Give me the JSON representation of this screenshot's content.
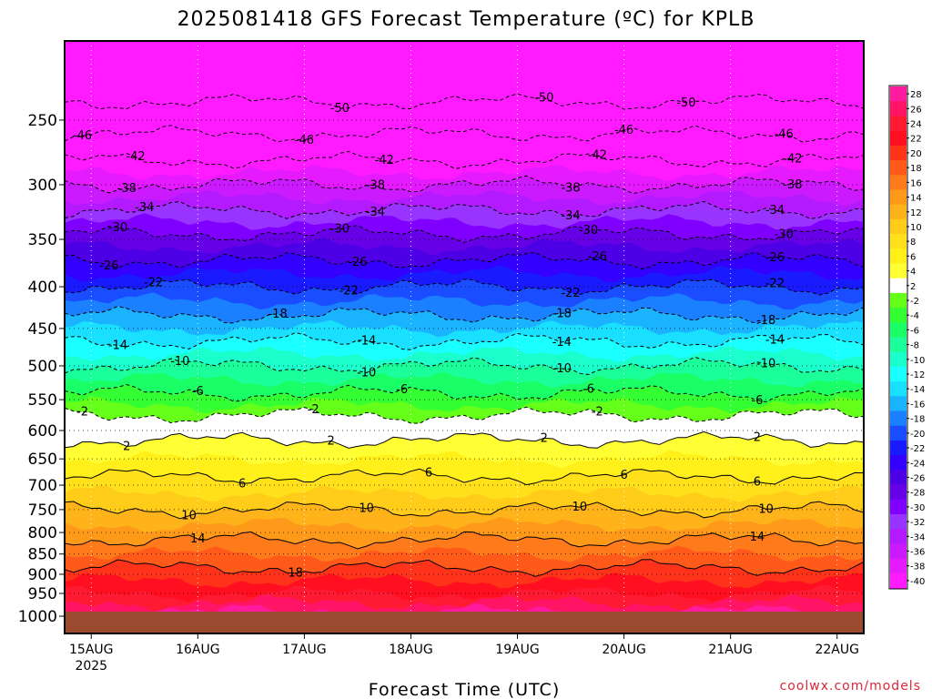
{
  "title": "2025081418 GFS Forecast Temperature (ºC) for KPLB",
  "credit": "coolwx.com/models",
  "chart_data": {
    "type": "heatmap",
    "title": "2025081418 GFS Forecast Temperature (ºC) for KPLB",
    "xlabel": "Forecast Time (UTC)",
    "ylabel": "",
    "x_ticks": [
      {
        "label": "15AUG",
        "sub": "2025",
        "hours": 6
      },
      {
        "label": "16AUG",
        "sub": "",
        "hours": 30
      },
      {
        "label": "17AUG",
        "sub": "",
        "hours": 54
      },
      {
        "label": "18AUG",
        "sub": "",
        "hours": 78
      },
      {
        "label": "19AUG",
        "sub": "",
        "hours": 102
      },
      {
        "label": "20AUG",
        "sub": "",
        "hours": 126
      },
      {
        "label": "21AUG",
        "sub": "",
        "hours": 150
      },
      {
        "label": "22AUG",
        "sub": "",
        "hours": 174
      }
    ],
    "xlim_hours": [
      0,
      180
    ],
    "y_ticks": [
      250,
      300,
      350,
      400,
      450,
      500,
      550,
      600,
      650,
      700,
      750,
      800,
      850,
      900,
      950,
      1000
    ],
    "ylim": [
      200,
      1000
    ],
    "y_scale": "log-pressure (inverted)",
    "colorbar": {
      "levels": [
        28,
        26,
        24,
        22,
        20,
        18,
        16,
        14,
        12,
        10,
        8,
        6,
        4,
        2,
        -2,
        -4,
        -6,
        -8,
        -10,
        -12,
        -14,
        -16,
        -18,
        -20,
        -22,
        -24,
        -26,
        -28,
        -30,
        -32,
        -34,
        -36,
        -38,
        -40
      ],
      "colors": [
        "#ff1a9e",
        "#ff1466",
        "#ff1a33",
        "#ff0f1f",
        "#ff331a",
        "#ff5a1a",
        "#ff7a1a",
        "#ff991a",
        "#ffb31a",
        "#ffcc1a",
        "#ffe01a",
        "#fff01a",
        "#ffff33",
        "#ffffff",
        "#66ff1a",
        "#33ff33",
        "#1aff66",
        "#1aff99",
        "#1affcc",
        "#1affff",
        "#1ae0ff",
        "#1ab3ff",
        "#1a80ff",
        "#1a4dff",
        "#1a1aff",
        "#3300ff",
        "#4d00e6",
        "#6600e6",
        "#8000ff",
        "#9933ff",
        "#b31aff",
        "#cc1aff",
        "#e61aff",
        "#ff1aff"
      ]
    },
    "profile": [
      {
        "p": 200,
        "t": -56
      },
      {
        "p": 250,
        "t": -48
      },
      {
        "p": 300,
        "t": -38
      },
      {
        "p": 350,
        "t": -29
      },
      {
        "p": 400,
        "t": -22
      },
      {
        "p": 450,
        "t": -16
      },
      {
        "p": 500,
        "t": -10
      },
      {
        "p": 550,
        "t": -5
      },
      {
        "p": 600,
        "t": 1
      },
      {
        "p": 650,
        "t": 4
      },
      {
        "p": 700,
        "t": 7
      },
      {
        "p": 750,
        "t": 10
      },
      {
        "p": 800,
        "t": 13
      },
      {
        "p": 850,
        "t": 16
      },
      {
        "p": 900,
        "t": 19
      },
      {
        "p": 950,
        "t": 22
      },
      {
        "p": 1000,
        "t": 26
      }
    ],
    "contours": [
      {
        "t": -50,
        "labels": [
          {
            "label": "-50",
            "hours": 62
          },
          {
            "label": "-50",
            "hours": 108
          },
          {
            "label": "-50",
            "hours": 140
          }
        ]
      },
      {
        "t": -46,
        "labels": [
          {
            "label": "-46",
            "hours": 4
          },
          {
            "label": "-46",
            "hours": 54
          },
          {
            "label": "-46",
            "hours": 126
          },
          {
            "label": "-46",
            "hours": 162
          }
        ]
      },
      {
        "t": -42,
        "labels": [
          {
            "label": "-42",
            "hours": 16
          },
          {
            "label": "-42",
            "hours": 72
          },
          {
            "label": "-42",
            "hours": 120
          },
          {
            "label": "-42",
            "hours": 164
          }
        ]
      },
      {
        "t": -38,
        "labels": [
          {
            "label": "-38",
            "hours": 14
          },
          {
            "label": "-38",
            "hours": 70
          },
          {
            "label": "-38",
            "hours": 114
          },
          {
            "label": "-38",
            "hours": 164
          }
        ]
      },
      {
        "t": -34,
        "labels": [
          {
            "label": "-34",
            "hours": 18
          },
          {
            "label": "-34",
            "hours": 70
          },
          {
            "label": "-34",
            "hours": 114
          },
          {
            "label": "-34",
            "hours": 160
          }
        ]
      },
      {
        "t": -30,
        "labels": [
          {
            "label": "-30",
            "hours": 12
          },
          {
            "label": "-30",
            "hours": 62
          },
          {
            "label": "-30",
            "hours": 118
          },
          {
            "label": "-30",
            "hours": 162
          }
        ]
      },
      {
        "t": -26,
        "labels": [
          {
            "label": "-26",
            "hours": 10
          },
          {
            "label": "-26",
            "hours": 66
          },
          {
            "label": "-26",
            "hours": 120
          },
          {
            "label": "-26",
            "hours": 160
          }
        ]
      },
      {
        "t": -22,
        "labels": [
          {
            "label": "-22",
            "hours": 20
          },
          {
            "label": "-22",
            "hours": 64
          },
          {
            "label": "-22",
            "hours": 114
          },
          {
            "label": "-22",
            "hours": 160
          }
        ]
      },
      {
        "t": -18,
        "labels": [
          {
            "label": "-18",
            "hours": 48
          },
          {
            "label": "-18",
            "hours": 112
          },
          {
            "label": "-18",
            "hours": 158
          }
        ]
      },
      {
        "t": -14,
        "labels": [
          {
            "label": "-14",
            "hours": 12
          },
          {
            "label": "-14",
            "hours": 68
          },
          {
            "label": "-14",
            "hours": 112
          },
          {
            "label": "-14",
            "hours": 160
          }
        ]
      },
      {
        "t": -10,
        "labels": [
          {
            "label": "-10",
            "hours": 26
          },
          {
            "label": "-10",
            "hours": 68
          },
          {
            "label": "-10",
            "hours": 112
          },
          {
            "label": "-10",
            "hours": 158
          }
        ]
      },
      {
        "t": -6,
        "labels": [
          {
            "label": "-6",
            "hours": 30
          },
          {
            "label": "-6",
            "hours": 76
          },
          {
            "label": "-6",
            "hours": 118
          },
          {
            "label": "-6",
            "hours": 156
          }
        ]
      },
      {
        "t": -2,
        "labels": [
          {
            "label": "-2",
            "hours": 4
          },
          {
            "label": "-2",
            "hours": 56
          },
          {
            "label": "-2",
            "hours": 120
          }
        ]
      },
      {
        "t": 2,
        "labels": [
          {
            "label": "2",
            "hours": 14
          },
          {
            "label": "2",
            "hours": 60
          },
          {
            "label": "2",
            "hours": 108
          },
          {
            "label": "2",
            "hours": 156
          }
        ]
      },
      {
        "t": 6,
        "labels": [
          {
            "label": "6",
            "hours": 40
          },
          {
            "label": "6",
            "hours": 82
          },
          {
            "label": "6",
            "hours": 126
          },
          {
            "label": "6",
            "hours": 156
          }
        ]
      },
      {
        "t": 10,
        "labels": [
          {
            "label": "10",
            "hours": 28
          },
          {
            "label": "10",
            "hours": 68
          },
          {
            "label": "10",
            "hours": 116
          },
          {
            "label": "10",
            "hours": 158
          }
        ]
      },
      {
        "t": 14,
        "labels": [
          {
            "label": "14",
            "hours": 30
          },
          {
            "label": "14",
            "hours": 156
          }
        ]
      },
      {
        "t": 18,
        "labels": [
          {
            "label": "18",
            "hours": 52
          }
        ]
      }
    ]
  }
}
